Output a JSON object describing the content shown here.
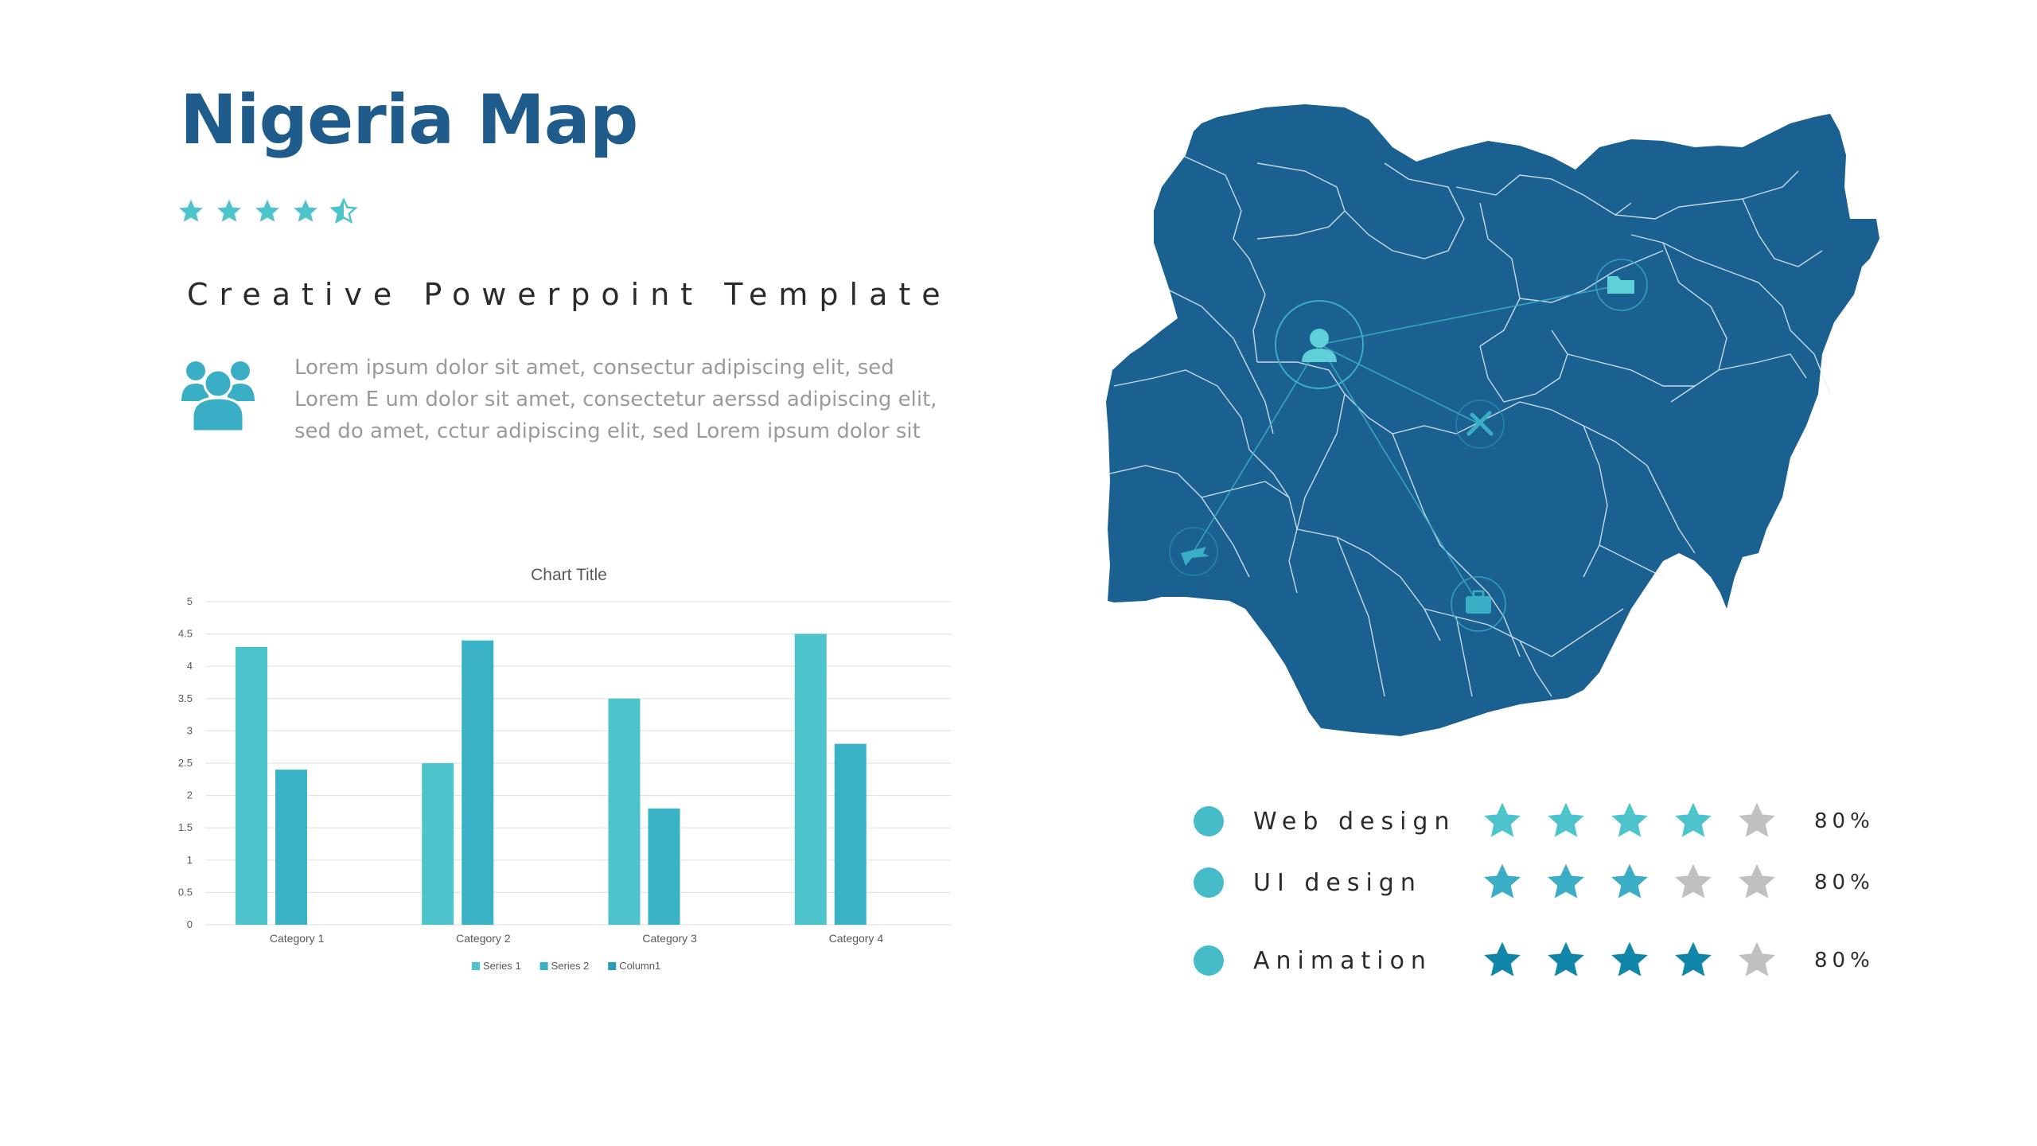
{
  "header": {
    "title": "Nigeria Map",
    "rating": 4.5,
    "subtitle": "Creative Powerpoint Template"
  },
  "intro": {
    "icon": "people-group-icon",
    "text": "Lorem ipsum dolor sit amet, consectur adipiscing elit, sed Lorem E um dolor sit amet, consectetur  aerssd adipiscing elit, sed do amet, cctur adipiscing elit, sed Lorem ipsum dolor sit"
  },
  "colors": {
    "title": "#1f5c8c",
    "accent": "#45bcc8",
    "map": "#1a6090",
    "star_teal": "#4dc3cc",
    "star_mid": "#3aaec4",
    "star_dark": "#0f86aa",
    "star_off": "#c0c0c0"
  },
  "chart_data": {
    "type": "bar",
    "title": "Chart Title",
    "categories": [
      "Category 1",
      "Category 2",
      "Category 3",
      "Category 4"
    ],
    "series": [
      {
        "name": "Series 1",
        "values": [
          4.3,
          2.5,
          3.5,
          4.5
        ],
        "color": "#4dc3cc"
      },
      {
        "name": "Series 2",
        "values": [
          2.4,
          4.4,
          1.8,
          2.8
        ],
        "color": "#3ab2c6"
      },
      {
        "name": "Column1",
        "values": [
          0,
          0,
          0,
          0
        ],
        "color": "#2a9bb8"
      }
    ],
    "ylim": [
      0,
      5
    ],
    "yticks": [
      "0",
      "0.5",
      "1",
      "1.5",
      "2",
      "2.5",
      "3",
      "3.5",
      "4",
      "4.5",
      "5"
    ],
    "grid": true,
    "legend": "bottom"
  },
  "map": {
    "region": "Nigeria",
    "markers": [
      "user-icon",
      "folder-icon",
      "tools-icon",
      "plane-icon",
      "briefcase-icon"
    ]
  },
  "skills": [
    {
      "label": "Web design",
      "stars": 4,
      "star_color": "#4dc3cc",
      "percent": "80%"
    },
    {
      "label": "UI design",
      "stars": 3,
      "star_color": "#3aaec4",
      "percent": "80%"
    },
    {
      "label": "Animation",
      "stars": 4,
      "star_color": "#0f86aa",
      "percent": "80%"
    }
  ]
}
